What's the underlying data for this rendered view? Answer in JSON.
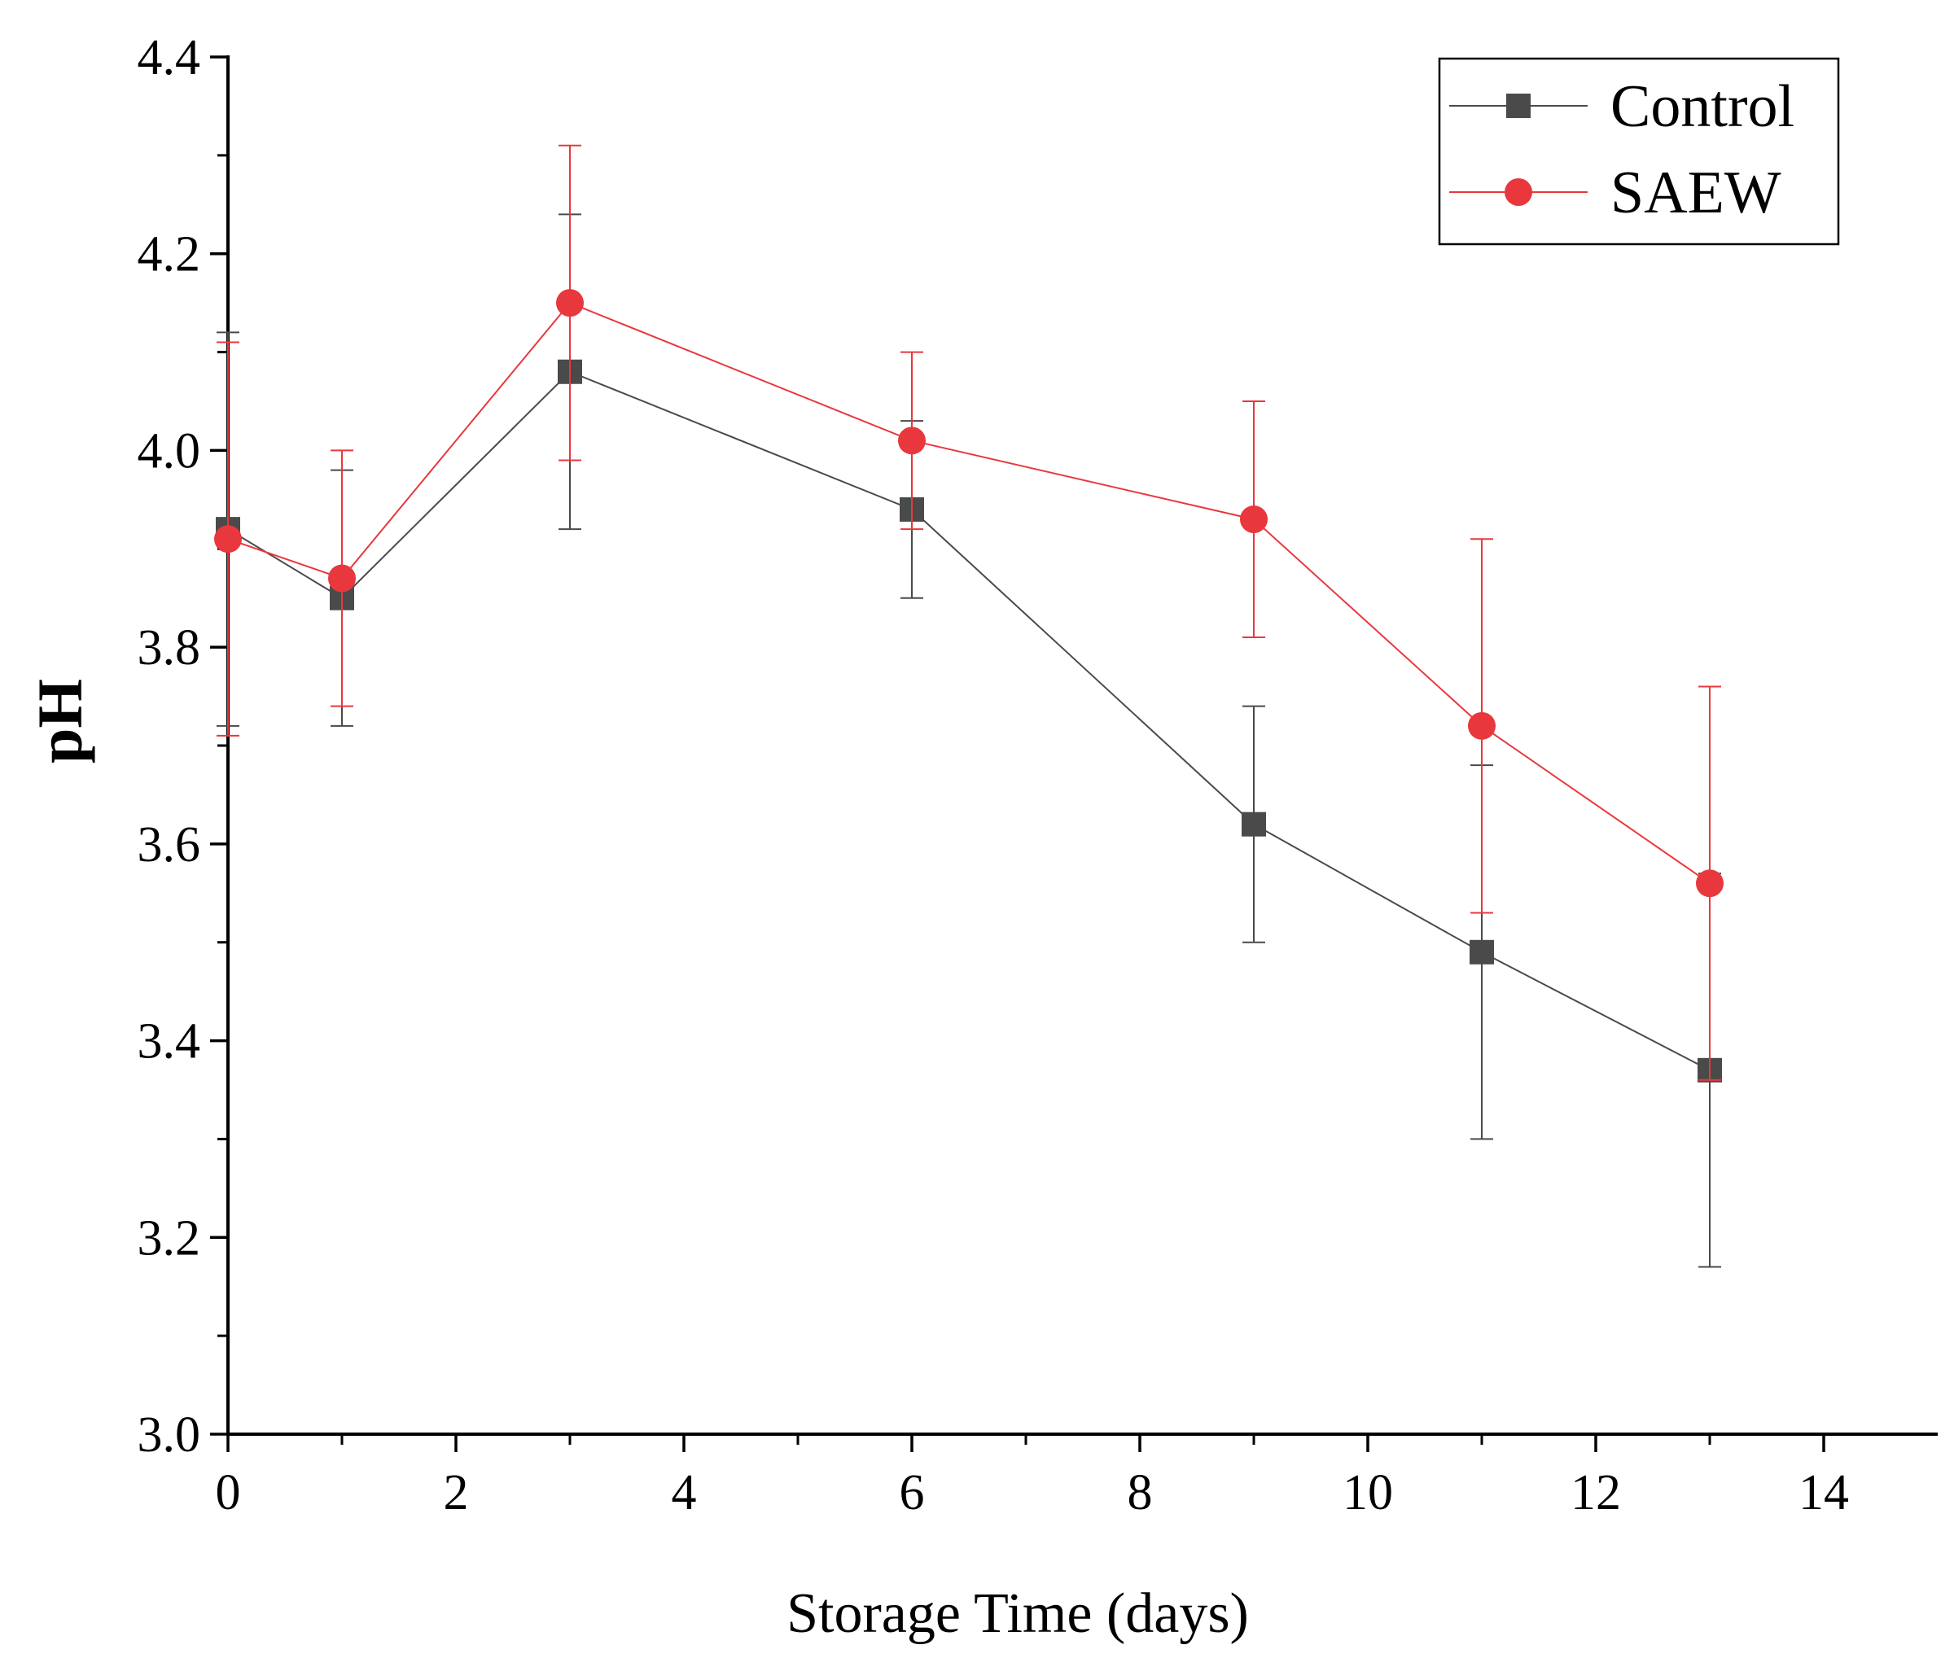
{
  "chart_data": {
    "type": "line",
    "xlabel": "Storage Time (days)",
    "ylabel": "pH",
    "xlim": [
      0,
      15
    ],
    "ylim": [
      3.0,
      4.4
    ],
    "x_ticks": [
      "0",
      "2",
      "4",
      "6",
      "8",
      "10",
      "12",
      "14"
    ],
    "y_ticks": [
      "3.0",
      "3.2",
      "3.4",
      "3.6",
      "3.8",
      "4.0",
      "4.2",
      "4.4"
    ],
    "grid": false,
    "legend_position": "top-right",
    "series": [
      {
        "name": "Control",
        "color": "#4a4a4a",
        "marker": "square",
        "x": [
          0,
          1,
          3,
          6,
          9,
          11,
          13
        ],
        "y": [
          3.92,
          3.85,
          4.08,
          3.94,
          3.62,
          3.49,
          3.37
        ],
        "error": [
          0.2,
          0.13,
          0.16,
          0.09,
          0.12,
          0.19,
          0.2
        ]
      },
      {
        "name": "SAEW",
        "color": "#e8383d",
        "marker": "circle",
        "x": [
          0,
          1,
          3,
          6,
          9,
          11,
          13
        ],
        "y": [
          3.91,
          3.87,
          4.15,
          4.01,
          3.93,
          3.72,
          3.56
        ],
        "error": [
          0.2,
          0.13,
          0.16,
          0.09,
          0.12,
          0.19,
          0.2
        ]
      }
    ]
  }
}
